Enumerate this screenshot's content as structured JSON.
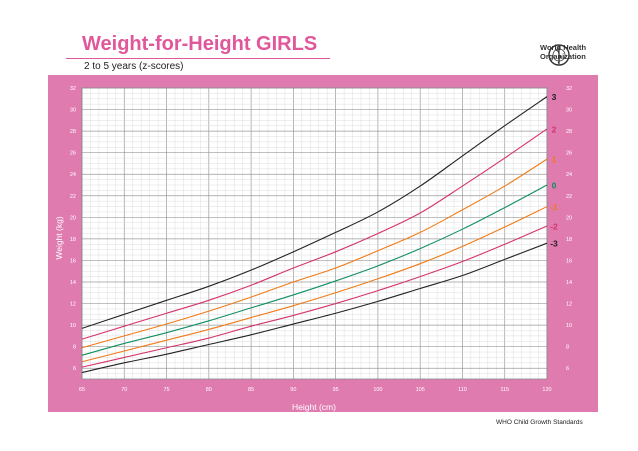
{
  "header": {
    "title": "Weight-for-Height GIRLS",
    "subtitle": "2 to 5 years (z-scores)",
    "org_line1": "World Health",
    "org_line2": "Organization"
  },
  "footer": {
    "source": "WHO Child Growth Standards"
  },
  "colors": {
    "panel": "#e07bb0",
    "grid_bg": "#ffffff",
    "title": "#e0579b",
    "z3": "#222222",
    "z2": "#d5336b",
    "z1": "#f07b16",
    "z0": "#0f8f5f"
  },
  "chart_data": {
    "type": "line",
    "title": "Weight-for-Height GIRLS",
    "subtitle": "2 to 5 years (z-scores)",
    "xlabel": "Height (cm)",
    "ylabel": "Weight (kg)",
    "xlim": [
      65,
      120
    ],
    "ylim": [
      5,
      32
    ],
    "grid": true,
    "xticks": [
      65,
      70,
      75,
      80,
      85,
      90,
      95,
      100,
      105,
      110,
      115,
      120
    ],
    "yticks": [
      6,
      8,
      10,
      12,
      14,
      16,
      18,
      20,
      22,
      24,
      26,
      28,
      30,
      32
    ],
    "x": [
      65,
      70,
      75,
      80,
      85,
      90,
      95,
      100,
      105,
      110,
      115,
      120
    ],
    "series": [
      {
        "name": "3",
        "color": "#222222",
        "values": [
          9.7,
          11.0,
          12.3,
          13.6,
          15.1,
          16.8,
          18.6,
          20.5,
          22.9,
          25.7,
          28.5,
          31.2
        ]
      },
      {
        "name": "2",
        "color": "#d5336b",
        "values": [
          8.7,
          9.9,
          11.1,
          12.3,
          13.7,
          15.3,
          16.8,
          18.5,
          20.4,
          22.9,
          25.5,
          28.2
        ]
      },
      {
        "name": "1",
        "color": "#f07b16",
        "values": [
          7.9,
          9.0,
          10.1,
          11.3,
          12.6,
          14.0,
          15.3,
          16.9,
          18.6,
          20.7,
          22.9,
          25.4
        ]
      },
      {
        "name": "0",
        "color": "#0f8f5f",
        "values": [
          7.2,
          8.3,
          9.3,
          10.4,
          11.6,
          12.8,
          14.1,
          15.5,
          17.1,
          18.9,
          20.9,
          23.0
        ]
      },
      {
        "name": "-1",
        "color": "#f07b16",
        "values": [
          6.6,
          7.6,
          8.6,
          9.6,
          10.7,
          11.8,
          13.0,
          14.3,
          15.7,
          17.3,
          19.1,
          21.0
        ]
      },
      {
        "name": "-2",
        "color": "#d5336b",
        "values": [
          6.1,
          7.0,
          7.9,
          8.8,
          9.9,
          10.9,
          12.0,
          13.2,
          14.5,
          15.9,
          17.5,
          19.2
        ]
      },
      {
        "name": "-3",
        "color": "#222222",
        "values": [
          5.6,
          6.5,
          7.3,
          8.2,
          9.1,
          10.1,
          11.1,
          12.2,
          13.4,
          14.6,
          16.1,
          17.6
        ]
      }
    ]
  }
}
